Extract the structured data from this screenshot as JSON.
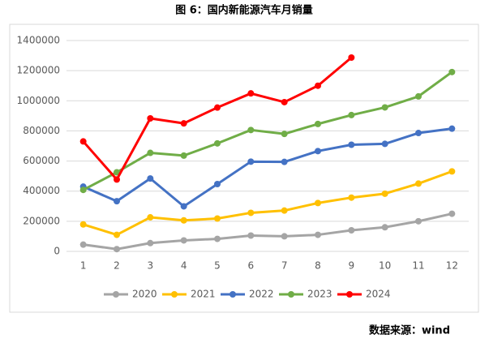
{
  "chart_data": {
    "type": "line",
    "title": "图 6：国内新能源汽车月销量",
    "source": "数据来源：wind",
    "categories": [
      "1",
      "2",
      "3",
      "4",
      "5",
      "6",
      "7",
      "8",
      "9",
      "10",
      "11",
      "12"
    ],
    "series": [
      {
        "name": "2020",
        "color": "#a5a5a5",
        "values": [
          45000,
          15000,
          55000,
          73000,
          83000,
          105000,
          100000,
          110000,
          140000,
          160000,
          200000,
          250000
        ]
      },
      {
        "name": "2021",
        "color": "#ffc000",
        "values": [
          179000,
          110000,
          226000,
          206000,
          218000,
          256000,
          271000,
          321000,
          357000,
          383000,
          450000,
          531000
        ]
      },
      {
        "name": "2022",
        "color": "#4472c4",
        "values": [
          430000,
          333000,
          484000,
          299000,
          447000,
          596000,
          594000,
          666000,
          708000,
          714000,
          786000,
          815000
        ]
      },
      {
        "name": "2023",
        "color": "#70ad47",
        "values": [
          408000,
          525000,
          654000,
          636000,
          717000,
          806000,
          780000,
          846000,
          905000,
          956000,
          1029000,
          1191000
        ]
      },
      {
        "name": "2024",
        "color": "#ff0000",
        "values": [
          730000,
          477000,
          883000,
          850000,
          955000,
          1049000,
          991000,
          1100000,
          1287000,
          null,
          null,
          null
        ]
      }
    ],
    "ylim": [
      0,
      1400000
    ],
    "yticks": [
      0,
      200000,
      400000,
      600000,
      800000,
      1000000,
      1200000,
      1400000
    ],
    "grid": true,
    "legend": "bottom"
  }
}
